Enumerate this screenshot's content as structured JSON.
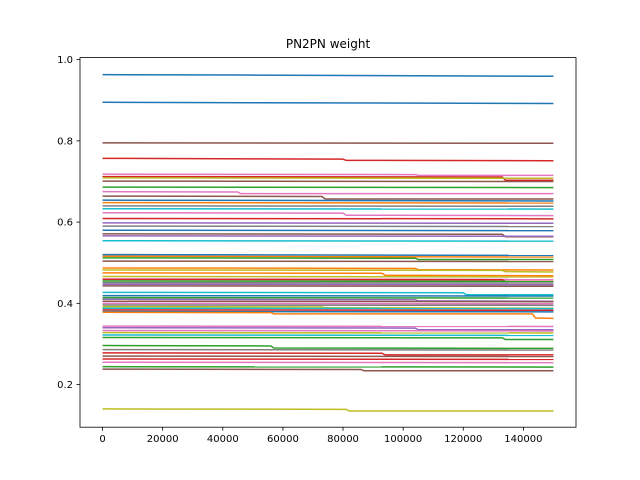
{
  "chart_data": {
    "type": "line",
    "title": "PN2PN weight",
    "xlabel": "",
    "ylabel": "",
    "xlim": [
      -7500,
      157500
    ],
    "ylim": [
      0.095,
      1.005
    ],
    "grid": false,
    "legend": "none",
    "x_ticks": [
      0,
      20000,
      40000,
      60000,
      80000,
      100000,
      120000,
      140000
    ],
    "x_tick_labels": [
      "0",
      "20000",
      "40000",
      "60000",
      "80000",
      "100000",
      "120000",
      "140000"
    ],
    "y_ticks": [
      0.2,
      0.4,
      0.6,
      0.8,
      1.0
    ],
    "y_tick_labels": [
      "0.2",
      "0.4",
      "0.6",
      "0.8",
      "1.0"
    ],
    "palette": [
      "#1f77b4",
      "#ff7f0e",
      "#2ca02c",
      "#d62728",
      "#9467bd",
      "#8c564b",
      "#e377c2",
      "#7f7f7f",
      "#bcbd22",
      "#17becf"
    ],
    "series": [
      {
        "color": "#1f77b4",
        "x": [
          0,
          47000,
          150000
        ],
        "y": [
          0.963,
          0.962,
          0.959
        ]
      },
      {
        "color": "#1f77b4",
        "x": [
          0,
          150000
        ],
        "y": [
          0.895,
          0.892
        ]
      },
      {
        "color": "#8c564b",
        "x": [
          0,
          150000
        ],
        "y": [
          0.795,
          0.794
        ]
      },
      {
        "color": "#d62728",
        "x": [
          0,
          80000,
          81000,
          150000
        ],
        "y": [
          0.757,
          0.755,
          0.752,
          0.751
        ]
      },
      {
        "color": "#e377c2",
        "x": [
          0,
          104000,
          105000,
          150000
        ],
        "y": [
          0.718,
          0.717,
          0.715,
          0.715
        ]
      },
      {
        "color": "#d62728",
        "x": [
          0,
          133000,
          134000,
          150000
        ],
        "y": [
          0.712,
          0.711,
          0.703,
          0.703
        ]
      },
      {
        "color": "#bcbd22",
        "x": [
          0,
          150000
        ],
        "y": [
          0.709,
          0.708
        ]
      },
      {
        "color": "#8c564b",
        "x": [
          0,
          150000
        ],
        "y": [
          0.701,
          0.7
        ]
      },
      {
        "color": "#2ca02c",
        "x": [
          0,
          150000
        ],
        "y": [
          0.686,
          0.685
        ]
      },
      {
        "color": "#e377c2",
        "x": [
          0,
          45000,
          46000,
          150000
        ],
        "y": [
          0.675,
          0.674,
          0.67,
          0.67
        ]
      },
      {
        "color": "#8c564b",
        "x": [
          0,
          73000,
          74000,
          150000
        ],
        "y": [
          0.664,
          0.663,
          0.657,
          0.657
        ]
      },
      {
        "color": "#1f77b4",
        "x": [
          0,
          150000
        ],
        "y": [
          0.654,
          0.652
        ]
      },
      {
        "color": "#ff7f0e",
        "x": [
          0,
          150000
        ],
        "y": [
          0.648,
          0.647
        ]
      },
      {
        "color": "#7f7f7f",
        "x": [
          0,
          150000
        ],
        "y": [
          0.64,
          0.639
        ]
      },
      {
        "color": "#17becf",
        "x": [
          0,
          150000
        ],
        "y": [
          0.633,
          0.632
        ]
      },
      {
        "color": "#e377c2",
        "x": [
          0,
          80000,
          81000,
          150000
        ],
        "y": [
          0.623,
          0.622,
          0.617,
          0.616
        ]
      },
      {
        "color": "#d62728",
        "x": [
          0,
          150000
        ],
        "y": [
          0.609,
          0.608
        ]
      },
      {
        "color": "#9467bd",
        "x": [
          0,
          150000
        ],
        "y": [
          0.598,
          0.597
        ]
      },
      {
        "color": "#7f7f7f",
        "x": [
          0,
          150000
        ],
        "y": [
          0.59,
          0.589
        ]
      },
      {
        "color": "#1f77b4",
        "x": [
          0,
          150000
        ],
        "y": [
          0.58,
          0.579
        ]
      },
      {
        "color": "#8c564b",
        "x": [
          0,
          133000,
          134000,
          150000
        ],
        "y": [
          0.571,
          0.57,
          0.564,
          0.564
        ]
      },
      {
        "color": "#9467bd",
        "x": [
          0,
          150000
        ],
        "y": [
          0.566,
          0.565
        ]
      },
      {
        "color": "#17becf",
        "x": [
          0,
          150000
        ],
        "y": [
          0.554,
          0.553
        ]
      },
      {
        "color": "#1f77b4",
        "x": [
          0,
          150000
        ],
        "y": [
          0.52,
          0.518
        ]
      },
      {
        "color": "#ff7f0e",
        "x": [
          0,
          150000
        ],
        "y": [
          0.516,
          0.514
        ]
      },
      {
        "color": "#2ca02c",
        "x": [
          0,
          104000,
          105000,
          150000
        ],
        "y": [
          0.512,
          0.511,
          0.508,
          0.508
        ]
      },
      {
        "color": "#8c564b",
        "x": [
          0,
          150000
        ],
        "y": [
          0.504,
          0.503
        ]
      },
      {
        "color": "#ff7f0e",
        "x": [
          0,
          104000,
          105000,
          150000
        ],
        "y": [
          0.487,
          0.486,
          0.483,
          0.482
        ]
      },
      {
        "color": "#bcbd22",
        "x": [
          0,
          133000,
          134000,
          150000
        ],
        "y": [
          0.482,
          0.481,
          0.478,
          0.477
        ]
      },
      {
        "color": "#ff7f0e",
        "x": [
          0,
          93000,
          94000,
          150000
        ],
        "y": [
          0.475,
          0.474,
          0.469,
          0.468
        ]
      },
      {
        "color": "#bcbd22",
        "x": [
          0,
          150000
        ],
        "y": [
          0.466,
          0.465
        ]
      },
      {
        "color": "#e377c2",
        "x": [
          0,
          150000
        ],
        "y": [
          0.46,
          0.459
        ]
      },
      {
        "color": "#d62728",
        "x": [
          0,
          133000,
          134000,
          150000
        ],
        "y": [
          0.459,
          0.458,
          0.454,
          0.454
        ]
      },
      {
        "color": "#2ca02c",
        "x": [
          0,
          150000
        ],
        "y": [
          0.455,
          0.454
        ]
      },
      {
        "color": "#7f7f7f",
        "x": [
          0,
          150000
        ],
        "y": [
          0.451,
          0.45
        ]
      },
      {
        "color": "#9467bd",
        "x": [
          0,
          150000
        ],
        "y": [
          0.447,
          0.446
        ]
      },
      {
        "color": "#8c564b",
        "x": [
          0,
          150000
        ],
        "y": [
          0.443,
          0.442
        ]
      },
      {
        "color": "#17becf",
        "x": [
          0,
          120000,
          121000,
          150000
        ],
        "y": [
          0.427,
          0.426,
          0.421,
          0.421
        ]
      },
      {
        "color": "#1f77b4",
        "x": [
          0,
          150000
        ],
        "y": [
          0.419,
          0.418
        ]
      },
      {
        "color": "#2ca02c",
        "x": [
          0,
          150000
        ],
        "y": [
          0.414,
          0.413
        ]
      },
      {
        "color": "#9467bd",
        "x": [
          0,
          104000,
          105000,
          150000
        ],
        "y": [
          0.41,
          0.409,
          0.406,
          0.405
        ]
      },
      {
        "color": "#8c564b",
        "x": [
          0,
          150000
        ],
        "y": [
          0.405,
          0.404
        ]
      },
      {
        "color": "#e377c2",
        "x": [
          0,
          150000
        ],
        "y": [
          0.4,
          0.399
        ]
      },
      {
        "color": "#7f7f7f",
        "x": [
          0,
          150000
        ],
        "y": [
          0.396,
          0.395
        ]
      },
      {
        "color": "#bcbd22",
        "x": [
          0,
          73000,
          74000,
          150000
        ],
        "y": [
          0.392,
          0.391,
          0.389,
          0.388
        ]
      },
      {
        "color": "#17becf",
        "x": [
          0,
          150000
        ],
        "y": [
          0.388,
          0.387
        ]
      },
      {
        "color": "#d62728",
        "x": [
          0,
          150000
        ],
        "y": [
          0.384,
          0.383
        ]
      },
      {
        "color": "#1f77b4",
        "x": [
          0,
          150000
        ],
        "y": [
          0.38,
          0.379
        ]
      },
      {
        "color": "#ff7f0e",
        "x": [
          0,
          56000,
          57000,
          143000,
          144000,
          150000
        ],
        "y": [
          0.378,
          0.377,
          0.374,
          0.374,
          0.364,
          0.363
        ]
      },
      {
        "color": "#e377c2",
        "x": [
          0,
          150000
        ],
        "y": [
          0.344,
          0.343
        ]
      },
      {
        "color": "#9467bd",
        "x": [
          0,
          104000,
          105000,
          150000
        ],
        "y": [
          0.34,
          0.339,
          0.335,
          0.335
        ]
      },
      {
        "color": "#e377c2",
        "x": [
          0,
          150000
        ],
        "y": [
          0.333,
          0.332
        ]
      },
      {
        "color": "#bcbd22",
        "x": [
          0,
          150000
        ],
        "y": [
          0.328,
          0.327
        ]
      },
      {
        "color": "#17becf",
        "x": [
          0,
          150000
        ],
        "y": [
          0.322,
          0.321
        ]
      },
      {
        "color": "#2ca02c",
        "x": [
          0,
          133000,
          134000,
          150000
        ],
        "y": [
          0.316,
          0.315,
          0.311,
          0.311
        ]
      },
      {
        "color": "#2ca02c",
        "x": [
          0,
          56000,
          57000,
          150000
        ],
        "y": [
          0.296,
          0.295,
          0.29,
          0.289
        ]
      },
      {
        "color": "#7f7f7f",
        "x": [
          0,
          150000
        ],
        "y": [
          0.286,
          0.285
        ]
      },
      {
        "color": "#d62728",
        "x": [
          0,
          93000,
          94000,
          150000
        ],
        "y": [
          0.278,
          0.277,
          0.273,
          0.273
        ]
      },
      {
        "color": "#8c564b",
        "x": [
          0,
          150000
        ],
        "y": [
          0.27,
          0.269
        ]
      },
      {
        "color": "#d62728",
        "x": [
          0,
          150000
        ],
        "y": [
          0.263,
          0.262
        ]
      },
      {
        "color": "#e377c2",
        "x": [
          0,
          150000
        ],
        "y": [
          0.255,
          0.254
        ]
      },
      {
        "color": "#2ca02c",
        "x": [
          0,
          150000
        ],
        "y": [
          0.244,
          0.243
        ]
      },
      {
        "color": "#8c564b",
        "x": [
          0,
          86000,
          87000,
          150000
        ],
        "y": [
          0.238,
          0.237,
          0.234,
          0.234
        ]
      },
      {
        "color": "#bcbd22",
        "x": [
          0,
          81000,
          82000,
          150000
        ],
        "y": [
          0.14,
          0.139,
          0.135,
          0.135
        ]
      }
    ]
  }
}
